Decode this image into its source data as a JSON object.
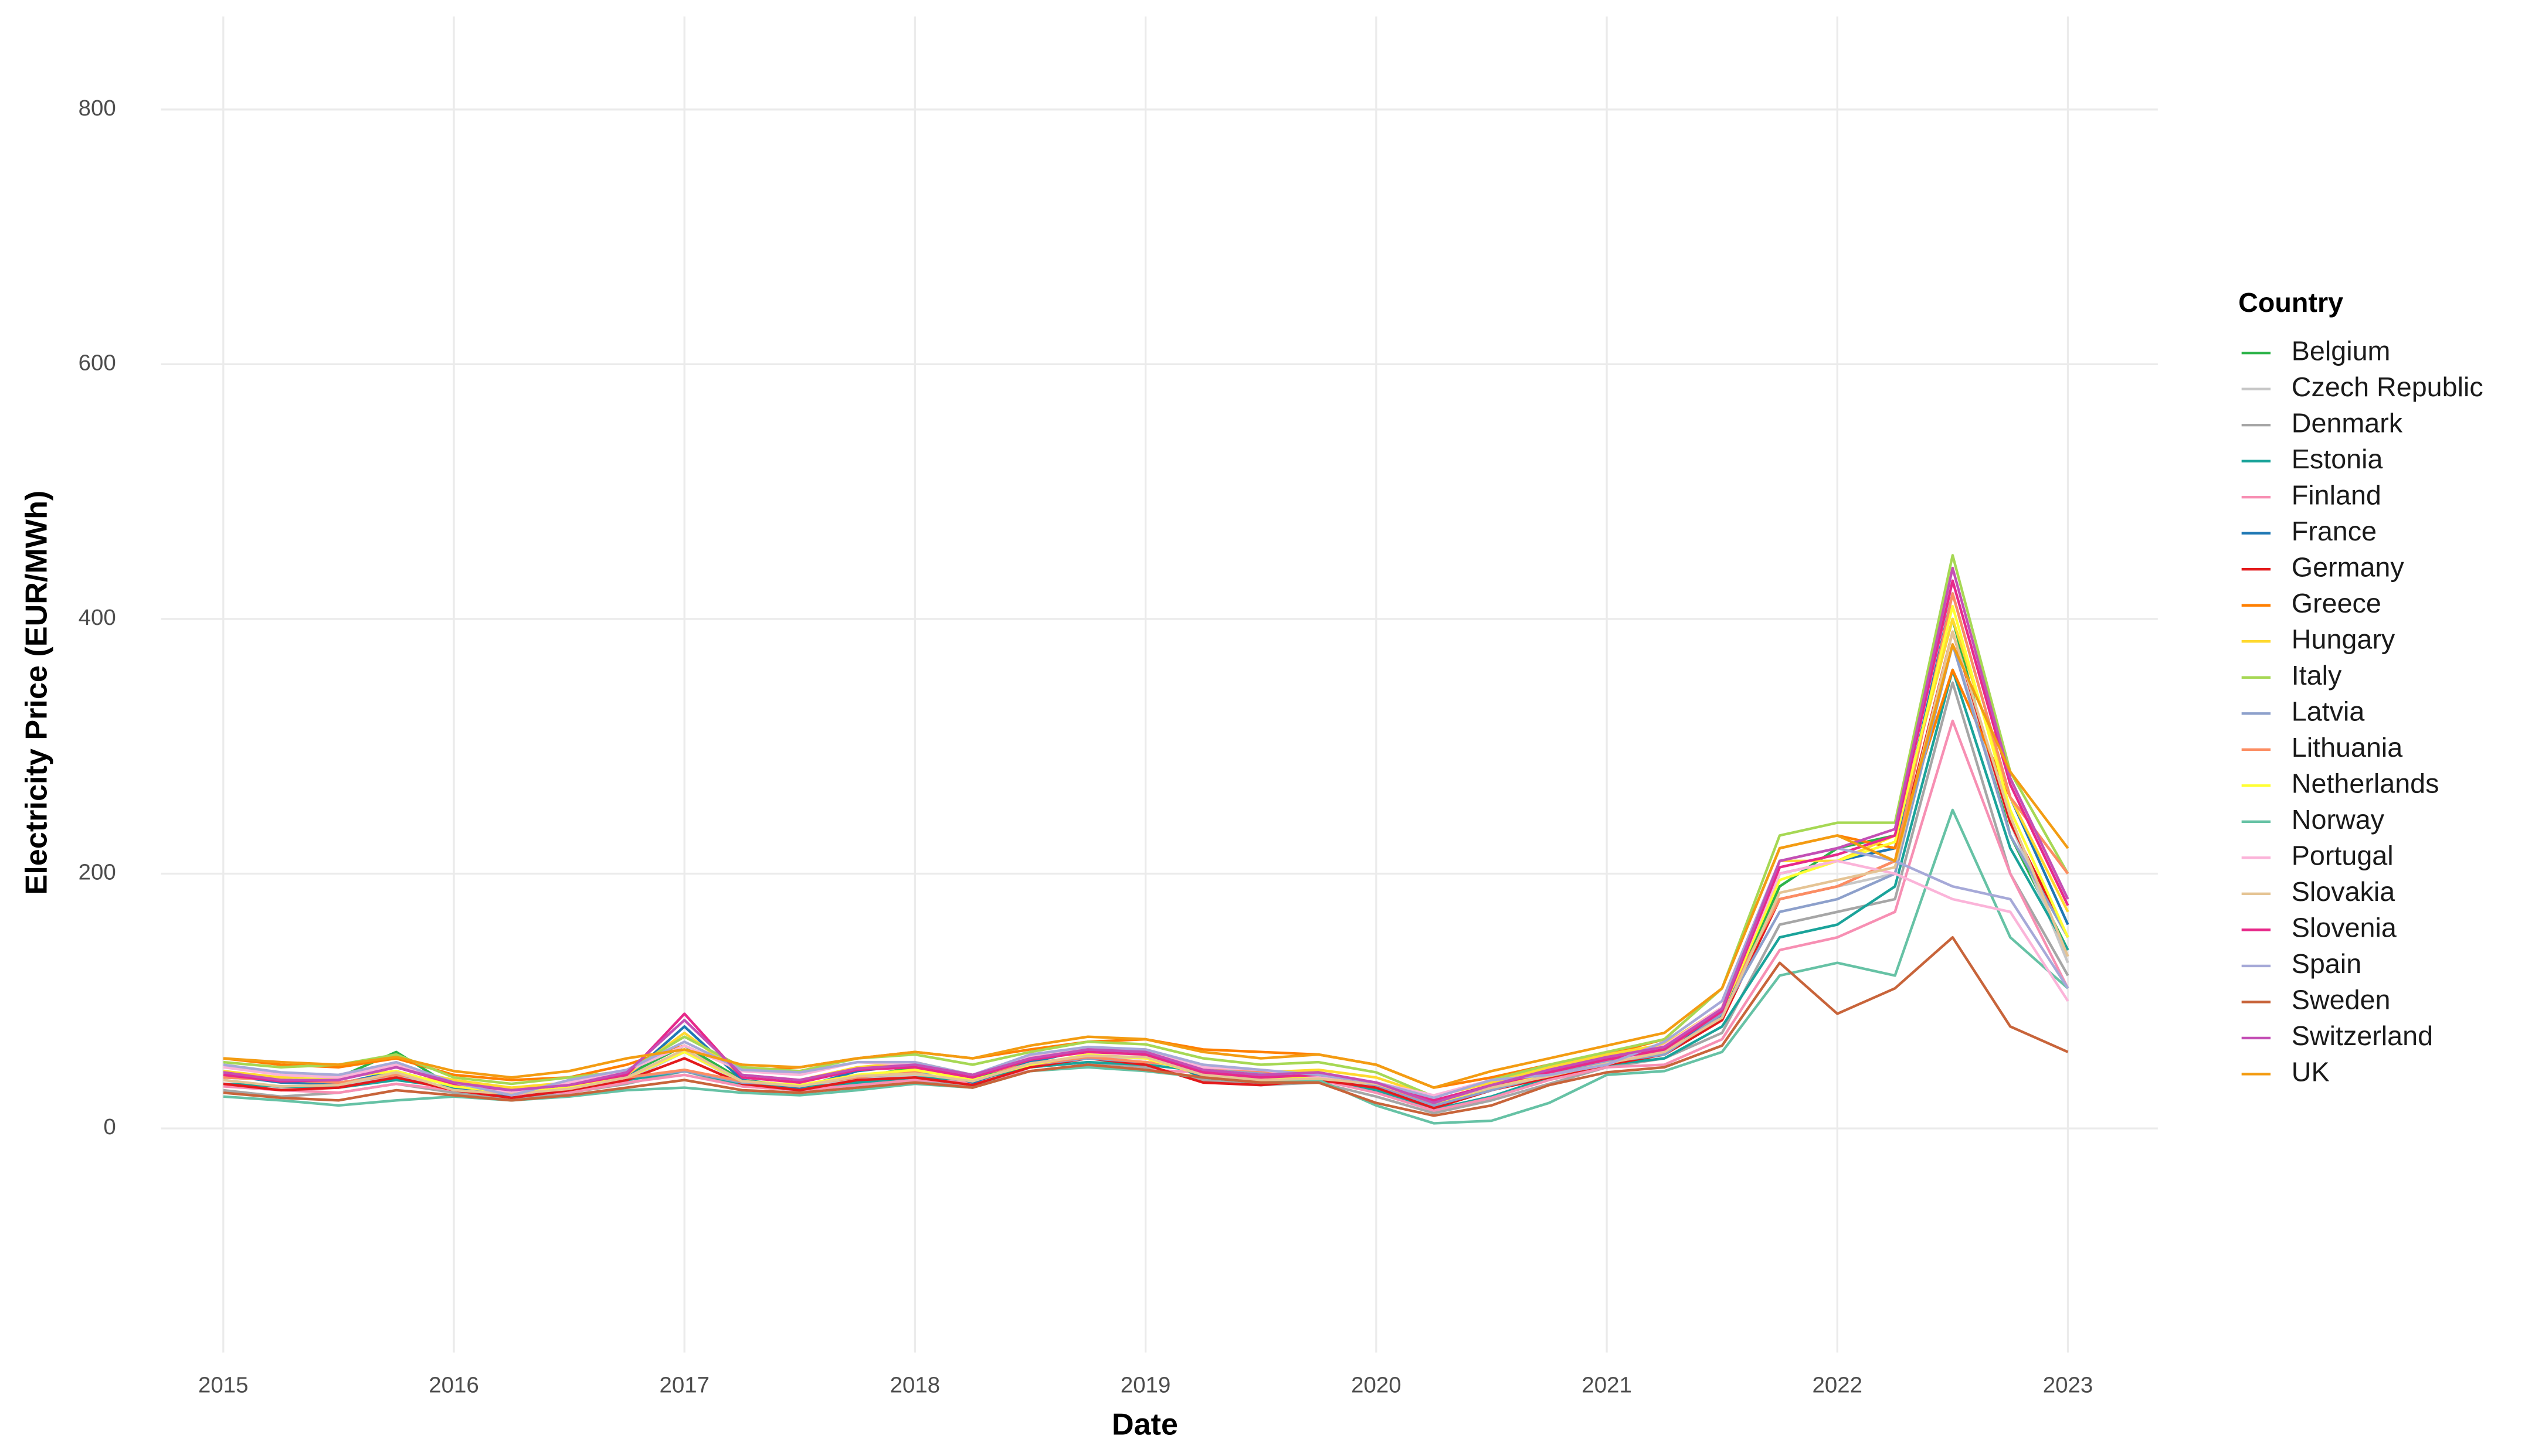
{
  "chart_data": {
    "type": "line",
    "x_label": "Date",
    "y_label": "Electricity Price (EUR/MWh)",
    "legend_title": "Country",
    "legend": "right",
    "grid": true,
    "xlim": [
      2014.73,
      2023.39
    ],
    "ylim": [
      -176,
      873
    ],
    "xticks": [
      2015,
      2016,
      2017,
      2018,
      2019,
      2020,
      2021,
      2022,
      2023
    ],
    "yticks": [
      0,
      200,
      400,
      600,
      800
    ],
    "x": [
      2015,
      2015.25,
      2015.5,
      2015.75,
      2016,
      2016.25,
      2016.5,
      2016.75,
      2017,
      2017.25,
      2017.5,
      2017.75,
      2018,
      2018.25,
      2018.5,
      2018.75,
      2019,
      2019.25,
      2019.5,
      2019.75,
      2020,
      2020.25,
      2020.5,
      2020.75,
      2021,
      2021.25,
      2021.5,
      2021.75,
      2022,
      2022.25,
      2022.5,
      2022.75,
      2023
    ],
    "series": [
      {
        "name": "Belgium",
        "color": "#2db34a",
        "values": [
          45,
          38,
          40,
          60,
          32,
          25,
          30,
          42,
          65,
          38,
          33,
          40,
          48,
          38,
          52,
          62,
          58,
          40,
          35,
          38,
          35,
          18,
          30,
          42,
          52,
          62,
          90,
          190,
          220,
          230,
          400,
          230,
          140
        ]
      },
      {
        "name": "Czech Republic",
        "color": "#c7c7c7",
        "values": [
          38,
          32,
          33,
          42,
          30,
          26,
          30,
          38,
          60,
          36,
          32,
          40,
          42,
          36,
          50,
          56,
          55,
          42,
          38,
          38,
          34,
          20,
          32,
          40,
          50,
          58,
          85,
          180,
          190,
          200,
          380,
          240,
          130
        ]
      },
      {
        "name": "Denmark",
        "color": "#a6a6a6",
        "values": [
          30,
          25,
          28,
          35,
          28,
          22,
          28,
          35,
          45,
          33,
          30,
          35,
          38,
          32,
          48,
          52,
          48,
          38,
          34,
          36,
          25,
          12,
          22,
          35,
          48,
          55,
          75,
          160,
          170,
          180,
          350,
          200,
          120
        ]
      },
      {
        "name": "Estonia",
        "color": "#1aa39a",
        "values": [
          35,
          33,
          32,
          38,
          32,
          28,
          30,
          38,
          45,
          35,
          32,
          36,
          40,
          38,
          48,
          52,
          50,
          45,
          42,
          40,
          30,
          15,
          25,
          40,
          50,
          55,
          80,
          150,
          160,
          190,
          360,
          220,
          140
        ]
      },
      {
        "name": "Finland",
        "color": "#f78fb3",
        "values": [
          33,
          30,
          28,
          35,
          30,
          27,
          28,
          36,
          42,
          33,
          30,
          34,
          38,
          36,
          45,
          50,
          46,
          44,
          40,
          38,
          28,
          14,
          24,
          38,
          48,
          50,
          70,
          140,
          150,
          170,
          320,
          200,
          110
        ]
      },
      {
        "name": "France",
        "color": "#1f78b4",
        "values": [
          42,
          36,
          35,
          45,
          33,
          24,
          30,
          40,
          80,
          38,
          32,
          45,
          50,
          36,
          52,
          62,
          60,
          40,
          36,
          40,
          36,
          16,
          30,
          45,
          55,
          62,
          88,
          200,
          210,
          220,
          420,
          260,
          160
        ]
      },
      {
        "name": "Germany",
        "color": "#e31a1c",
        "values": [
          35,
          30,
          32,
          40,
          30,
          24,
          30,
          38,
          55,
          35,
          30,
          38,
          40,
          34,
          48,
          55,
          50,
          36,
          34,
          38,
          32,
          16,
          30,
          40,
          50,
          58,
          85,
          180,
          190,
          210,
          390,
          240,
          150
        ]
      },
      {
        "name": "Greece",
        "color": "#ff7f00",
        "values": [
          55,
          50,
          48,
          55,
          42,
          38,
          40,
          50,
          65,
          45,
          48,
          55,
          60,
          55,
          62,
          68,
          70,
          62,
          60,
          58,
          50,
          32,
          40,
          50,
          58,
          70,
          110,
          220,
          230,
          220,
          360,
          260,
          200
        ]
      },
      {
        "name": "Hungary",
        "color": "#ffd92f",
        "values": [
          45,
          40,
          42,
          48,
          38,
          32,
          36,
          42,
          75,
          42,
          38,
          48,
          52,
          42,
          56,
          62,
          62,
          48,
          44,
          46,
          40,
          25,
          36,
          48,
          58,
          66,
          95,
          210,
          210,
          230,
          400,
          260,
          170
        ]
      },
      {
        "name": "Italy",
        "color": "#a6d854",
        "values": [
          52,
          48,
          50,
          58,
          40,
          35,
          40,
          45,
          72,
          48,
          45,
          55,
          58,
          50,
          60,
          68,
          66,
          55,
          50,
          52,
          44,
          25,
          38,
          50,
          60,
          70,
          110,
          230,
          240,
          240,
          450,
          280,
          200
        ]
      },
      {
        "name": "Latvia",
        "color": "#8da0cb",
        "values": [
          40,
          38,
          36,
          42,
          35,
          30,
          32,
          40,
          45,
          36,
          34,
          40,
          44,
          42,
          50,
          55,
          52,
          48,
          44,
          42,
          34,
          18,
          30,
          42,
          52,
          58,
          90,
          170,
          180,
          200,
          380,
          230,
          150
        ]
      },
      {
        "name": "Lithuania",
        "color": "#fc8d62",
        "values": [
          40,
          38,
          36,
          42,
          36,
          30,
          32,
          40,
          46,
          37,
          34,
          40,
          45,
          42,
          50,
          56,
          52,
          48,
          45,
          42,
          35,
          20,
          32,
          44,
          54,
          60,
          95,
          180,
          190,
          210,
          420,
          260,
          200
        ]
      },
      {
        "name": "Netherlands",
        "color": "#ffff33",
        "values": [
          42,
          38,
          40,
          45,
          33,
          28,
          32,
          40,
          60,
          37,
          34,
          42,
          46,
          38,
          50,
          58,
          55,
          42,
          38,
          40,
          36,
          20,
          32,
          44,
          54,
          64,
          92,
          195,
          210,
          225,
          410,
          250,
          150
        ]
      },
      {
        "name": "Norway",
        "color": "#66c2a5",
        "values": [
          25,
          22,
          18,
          22,
          25,
          22,
          25,
          30,
          32,
          28,
          26,
          30,
          35,
          32,
          45,
          48,
          45,
          40,
          36,
          38,
          18,
          4,
          6,
          20,
          42,
          45,
          60,
          120,
          130,
          120,
          250,
          150,
          110
        ]
      },
      {
        "name": "Portugal",
        "color": "#fbb4d9",
        "values": [
          48,
          42,
          40,
          50,
          36,
          28,
          36,
          45,
          65,
          45,
          42,
          52,
          50,
          40,
          56,
          62,
          60,
          48,
          46,
          40,
          36,
          26,
          38,
          42,
          50,
          65,
          95,
          200,
          210,
          200,
          180,
          170,
          100
        ]
      },
      {
        "name": "Slovakia",
        "color": "#e5c494",
        "values": [
          38,
          33,
          34,
          44,
          30,
          27,
          31,
          40,
          62,
          37,
          33,
          41,
          43,
          37,
          51,
          57,
          56,
          42,
          38,
          39,
          35,
          21,
          32,
          41,
          51,
          60,
          87,
          185,
          195,
          205,
          390,
          245,
          135
        ]
      },
      {
        "name": "Slovenia",
        "color": "#e7298a",
        "values": [
          42,
          37,
          38,
          48,
          35,
          30,
          34,
          42,
          90,
          40,
          36,
          46,
          48,
          40,
          54,
          60,
          58,
          44,
          40,
          42,
          36,
          22,
          34,
          44,
          54,
          62,
          92,
          205,
          215,
          230,
          430,
          270,
          175
        ]
      },
      {
        "name": "Spain",
        "color": "#a6a9d8",
        "values": [
          50,
          44,
          42,
          52,
          36,
          26,
          38,
          46,
          68,
          46,
          44,
          52,
          52,
          42,
          58,
          64,
          62,
          50,
          46,
          42,
          36,
          24,
          38,
          42,
          50,
          68,
          100,
          210,
          220,
          210,
          190,
          180,
          110
        ]
      },
      {
        "name": "Sweden",
        "color": "#c8643a",
        "values": [
          28,
          24,
          22,
          30,
          26,
          22,
          26,
          32,
          38,
          30,
          28,
          32,
          36,
          32,
          45,
          50,
          46,
          40,
          36,
          36,
          20,
          10,
          18,
          34,
          44,
          48,
          65,
          130,
          90,
          110,
          150,
          80,
          60
        ]
      },
      {
        "name": "Switzerland",
        "color": "#c44fb5",
        "values": [
          44,
          38,
          38,
          48,
          36,
          30,
          34,
          44,
          85,
          42,
          38,
          47,
          50,
          42,
          55,
          62,
          60,
          46,
          42,
          44,
          36,
          20,
          34,
          46,
          56,
          64,
          94,
          210,
          220,
          235,
          440,
          275,
          180
        ]
      },
      {
        "name": "UK",
        "color": "#f39c12",
        "values": [
          55,
          52,
          50,
          56,
          45,
          40,
          45,
          55,
          62,
          50,
          48,
          55,
          60,
          55,
          65,
          72,
          70,
          60,
          55,
          58,
          50,
          32,
          45,
          55,
          65,
          75,
          110,
          220,
          230,
          210,
          380,
          280,
          220
        ]
      }
    ]
  }
}
